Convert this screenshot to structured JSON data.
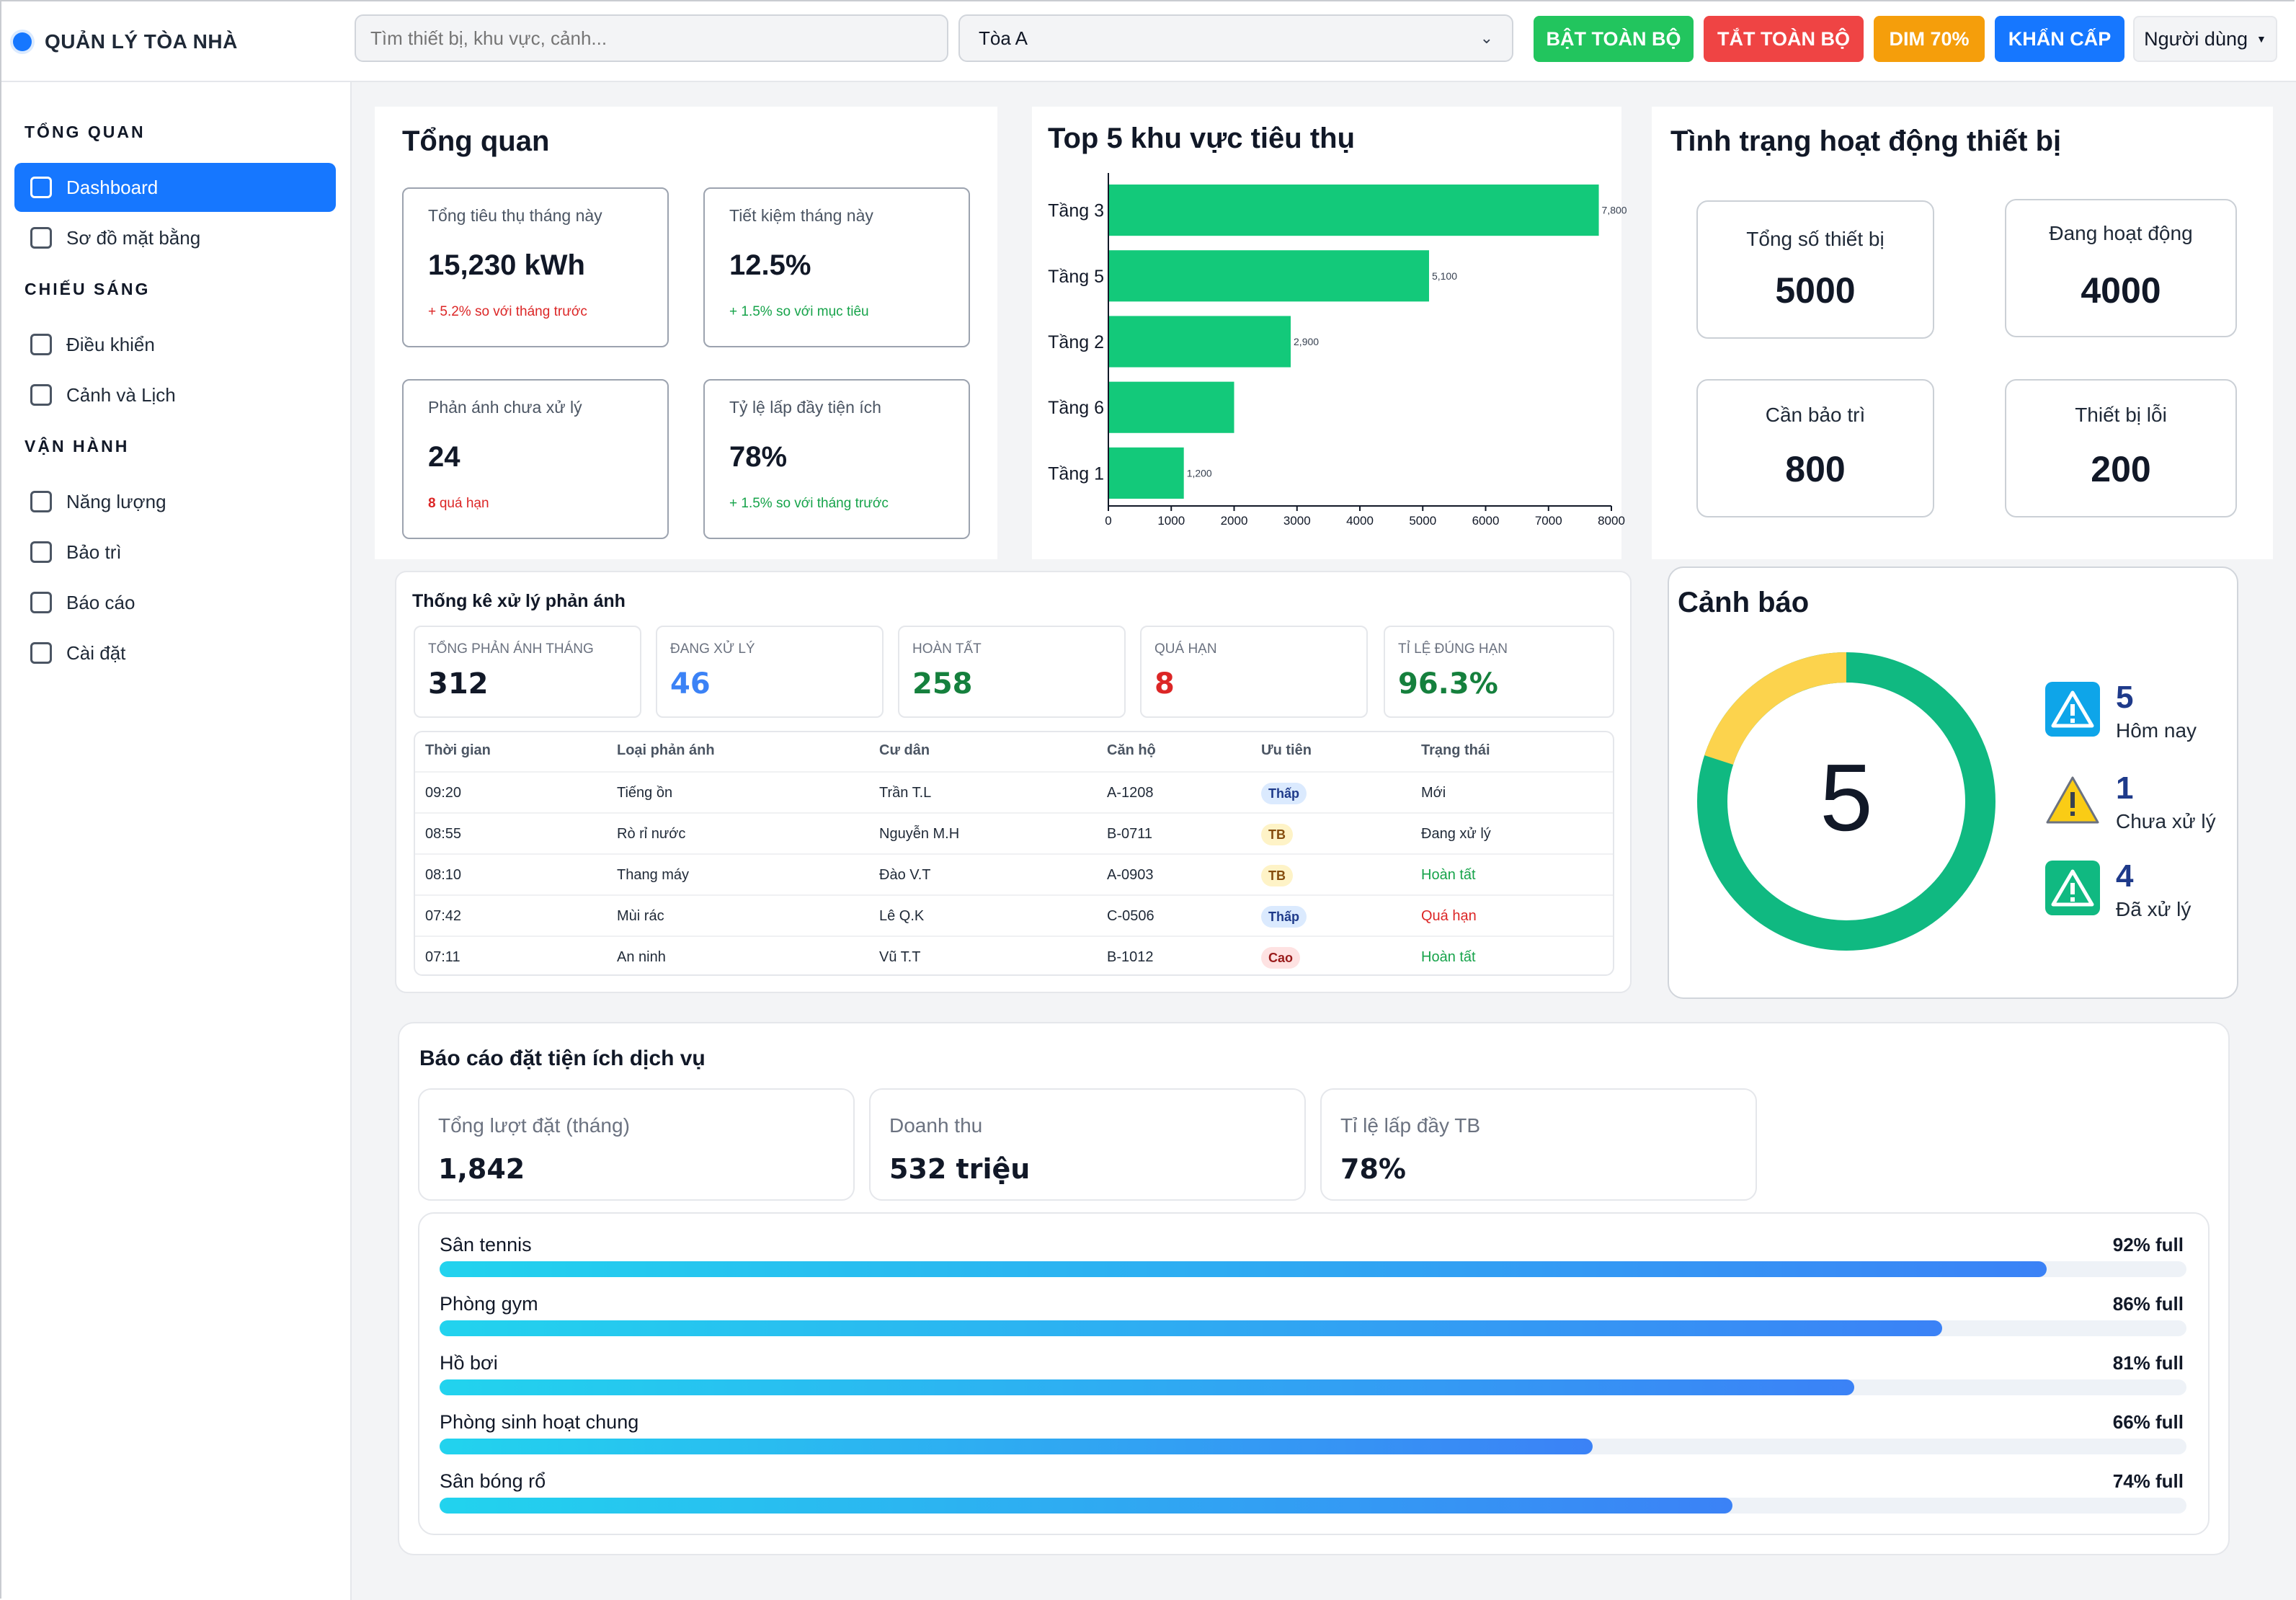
{
  "topbar": {
    "brand": "QUẢN LÝ TÒA NHÀ",
    "search_placeholder": "Tìm thiết bị, khu vực, cảnh...",
    "building_selected": "Tòa A",
    "btn_on": "BẬT TOÀN BỘ",
    "btn_off": "TẮT TOÀN BỘ",
    "btn_dim": "DIM 70%",
    "btn_emergency": "KHẨN CẤP",
    "user_menu": "Người dùng"
  },
  "sidebar": {
    "sections": [
      {
        "title": "TỔNG QUAN",
        "items": [
          "Dashboard",
          "Sơ đồ mặt bằng"
        ]
      },
      {
        "title": "CHIẾU SÁNG",
        "items": [
          "Điều khiển",
          "Cảnh và Lịch"
        ]
      },
      {
        "title": "VẬN HÀNH",
        "items": [
          "Năng lượng",
          "Bảo trì",
          "Báo cáo",
          "Cài đặt"
        ]
      }
    ],
    "active": "Dashboard"
  },
  "overview": {
    "title": "Tổng quan",
    "kpis": [
      {
        "label": "Tổng tiêu thụ tháng này",
        "value": "15,230 kWh",
        "note": "+ 5.2% so với tháng trước",
        "note_color": "#dc2626"
      },
      {
        "label": "Tiết kiệm tháng này",
        "value": "12.5%",
        "note": "+ 1.5% so với mục tiêu",
        "note_color": "#16a34a"
      },
      {
        "label": "Phản ánh chưa xử lý",
        "value": "24",
        "note_strong": "8",
        "note": "quá hạn",
        "note_color": "#dc2626"
      },
      {
        "label": "Tỷ lệ lấp đầy tiện ích",
        "value": "78%",
        "note": "+ 1.5% so với tháng trước",
        "note_color": "#16a34a"
      }
    ]
  },
  "chart_data": {
    "type": "bar",
    "orientation": "horizontal",
    "title": "Top 5 khu vực tiêu thụ",
    "categories": [
      "Tầng 3",
      "Tầng 5",
      "Tầng 2",
      "Tầng 6",
      "Tầng 1"
    ],
    "values": [
      7800,
      5100,
      2900,
      2000,
      1200
    ],
    "data_labels": [
      "7,800",
      "5,100",
      "2,900",
      "",
      "1,200"
    ],
    "xlim": [
      0,
      8000
    ],
    "xticks": [
      0,
      1000,
      2000,
      3000,
      4000,
      5000,
      6000,
      7000,
      8000
    ],
    "color": "#13c97a",
    "grid": false
  },
  "devices": {
    "title": "Tình trạng hoạt động thiết bị",
    "items": [
      {
        "label": "Tổng số thiết bị",
        "value": "5000"
      },
      {
        "label": "Đang hoạt động",
        "value": "4000"
      },
      {
        "label": "Cần bảo trì",
        "value": "800"
      },
      {
        "label": "Thiết bị lỗi",
        "value": "200"
      }
    ]
  },
  "feedback": {
    "title": "Thống kê xử lý phản ánh",
    "stats": [
      {
        "label": "TỔNG PHẢN ÁNH THÁNG",
        "value": "312",
        "color": "#111827"
      },
      {
        "label": "ĐANG XỬ LÝ",
        "value": "46",
        "color": "#3b82f6"
      },
      {
        "label": "HOÀN TẤT",
        "value": "258",
        "color": "#15803d"
      },
      {
        "label": "QUÁ HẠN",
        "value": "8",
        "color": "#dc2626"
      },
      {
        "label": "TỈ LỆ ĐÚNG HẠN",
        "value": "96.3%",
        "color": "#15803d"
      }
    ],
    "columns": [
      "Thời gian",
      "Loại phản ánh",
      "Cư dân",
      "Căn hộ",
      "Ưu tiên",
      "Trạng thái"
    ],
    "rows": [
      {
        "time": "09:20",
        "type": "Tiếng ồn",
        "resident": "Trần T.L",
        "apt": "A-1208",
        "priority": "Thấp",
        "prio_level": "low",
        "status": "Mới",
        "status_color": "#1f2937"
      },
      {
        "time": "08:55",
        "type": "Rò rỉ nước",
        "resident": "Nguyễn M.H",
        "apt": "B-0711",
        "priority": "TB",
        "prio_level": "mid",
        "status": "Đang xử lý",
        "status_color": "#1f2937"
      },
      {
        "time": "08:10",
        "type": "Thang máy",
        "resident": "Đào V.T",
        "apt": "A-0903",
        "priority": "TB",
        "prio_level": "mid",
        "status": "Hoàn tất",
        "status_color": "#16a34a"
      },
      {
        "time": "07:42",
        "type": "Mùi rác",
        "resident": "Lê Q.K",
        "apt": "C-0506",
        "priority": "Thấp",
        "prio_level": "low",
        "status": "Quá hạn",
        "status_color": "#dc2626"
      },
      {
        "time": "07:11",
        "type": "An ninh",
        "resident": "Vũ T.T",
        "apt": "B-1012",
        "priority": "Cao",
        "prio_level": "high",
        "status": "Hoàn tất",
        "status_color": "#16a34a"
      }
    ]
  },
  "alerts": {
    "title": "Cảnh báo",
    "total": "5",
    "ring": [
      {
        "name": "Chưa xử lý",
        "value": 1,
        "color": "#fcd34d"
      },
      {
        "name": "Đã xử lý",
        "value": 4,
        "color": "#10b981"
      }
    ],
    "items": [
      {
        "count": "5",
        "label": "Hôm nay",
        "color": "#0ea5e9",
        "icon": "warning-icon"
      },
      {
        "count": "1",
        "label": "Chưa xử lý",
        "color": "#facc15",
        "icon": "warning-icon"
      },
      {
        "count": "4",
        "label": "Đã xử lý",
        "color": "#10b981",
        "icon": "warning-icon"
      }
    ]
  },
  "report": {
    "title": "Báo cáo đặt tiện ích dịch vụ",
    "stats": [
      {
        "label": "Tổng lượt đặt (tháng)",
        "value": "1,842"
      },
      {
        "label": "Doanh thu",
        "value": "532 triệu"
      },
      {
        "label": "Tỉ lệ lấp đầy TB",
        "value": "78%"
      }
    ],
    "facilities": [
      {
        "name": "Sân tennis",
        "pct_label": "92% full",
        "fill": 0.92
      },
      {
        "name": "Phòng gym",
        "pct_label": "86% full",
        "fill": 0.86
      },
      {
        "name": "Hồ bơi",
        "pct_label": "81% full",
        "fill": 0.81
      },
      {
        "name": "Phòng sinh hoạt chung",
        "pct_label": "66% full",
        "fill": 0.66
      },
      {
        "name": "Sân bóng rổ",
        "pct_label": "74% full",
        "fill": 0.74
      }
    ]
  }
}
